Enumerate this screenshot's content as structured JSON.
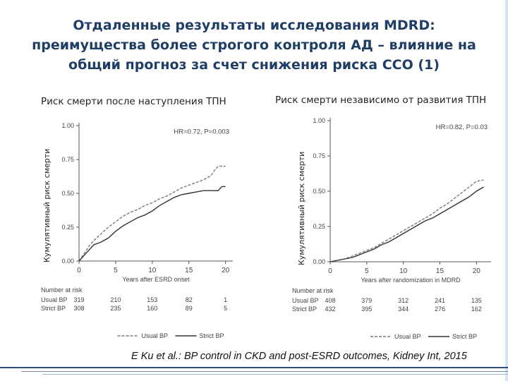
{
  "slide": {
    "title_lines": [
      "Отдаленные результаты исследования MDRD:",
      "преимущества более строгого контроля АД – влияние на",
      "общий прогноз за счет снижения риска ССО (1)"
    ],
    "citation": "E Ku et al.: BP control in CKD and post-ESRD outcomes, Kidney Int, 2015",
    "accent_color": "#1f3e66"
  },
  "chart_data": [
    {
      "type": "line",
      "title": "Риск смерти после наступления ТПН",
      "ylabel": "Кумулятивный риск смерти",
      "xlabel": "Years after ESRD onset",
      "annotation": "HR=0.72, P=0.003",
      "xlim": [
        0,
        21
      ],
      "ylim": [
        0,
        1
      ],
      "xticks": [
        "0",
        "5",
        "10",
        "15",
        "20"
      ],
      "yticks": [
        "0.00",
        "0.25",
        "0.50",
        "0.75",
        "1.00"
      ],
      "series": [
        {
          "name": "Usual BP",
          "style": "dashed",
          "x": [
            0,
            0.5,
            1,
            1.5,
            2,
            3,
            4,
            5,
            6,
            7,
            8,
            9,
            10,
            11,
            12,
            13,
            14,
            15,
            16,
            17,
            18,
            18.5,
            19,
            20
          ],
          "values": [
            0,
            0.04,
            0.08,
            0.12,
            0.15,
            0.2,
            0.25,
            0.29,
            0.33,
            0.36,
            0.38,
            0.41,
            0.43,
            0.46,
            0.48,
            0.51,
            0.54,
            0.56,
            0.58,
            0.6,
            0.63,
            0.67,
            0.7,
            0.7
          ]
        },
        {
          "name": "Strict BP",
          "style": "solid",
          "x": [
            0,
            0.5,
            1,
            1.5,
            2,
            3,
            4,
            5,
            6,
            7,
            8,
            9,
            10,
            11,
            12,
            13,
            14,
            15,
            16,
            17,
            18,
            19,
            19.5,
            20
          ],
          "values": [
            0,
            0.03,
            0.06,
            0.09,
            0.12,
            0.14,
            0.17,
            0.22,
            0.26,
            0.29,
            0.32,
            0.34,
            0.37,
            0.41,
            0.44,
            0.47,
            0.49,
            0.5,
            0.51,
            0.52,
            0.52,
            0.52,
            0.55,
            0.55
          ]
        }
      ],
      "risk_table": {
        "header": "Number at risk",
        "rows": [
          {
            "label": "Usual BP",
            "values": [
              "319",
              "210",
              "153",
              "82",
              "1"
            ]
          },
          {
            "label": "Strict BP",
            "values": [
              "308",
              "235",
              "160",
              "89",
              "5"
            ]
          }
        ]
      },
      "legend": {
        "position": "bottom",
        "entries": [
          "Usual BP",
          "Strict BP"
        ]
      }
    },
    {
      "type": "line",
      "title": "Риск смерти независимо от развития ТПН",
      "ylabel": "Кумулятивный риск смерти",
      "xlabel": "Years after randomization in MDRD",
      "annotation": "HR=0.82, P=0.03",
      "xlim": [
        0,
        22
      ],
      "ylim": [
        0,
        1
      ],
      "xticks": [
        "0",
        "5",
        "10",
        "15",
        "20"
      ],
      "yticks": [
        "0.00",
        "0.25",
        "0.50",
        "0.75",
        "1.00"
      ],
      "series": [
        {
          "name": "Usual BP",
          "style": "dashed",
          "x": [
            0,
            1,
            2,
            3,
            4,
            5,
            6,
            7,
            8,
            9,
            10,
            11,
            12,
            13,
            14,
            15,
            16,
            17,
            18,
            19,
            20,
            21
          ],
          "values": [
            0,
            0.01,
            0.02,
            0.04,
            0.06,
            0.08,
            0.1,
            0.13,
            0.16,
            0.19,
            0.22,
            0.25,
            0.28,
            0.31,
            0.34,
            0.38,
            0.41,
            0.45,
            0.49,
            0.53,
            0.57,
            0.58
          ]
        },
        {
          "name": "Strict BP",
          "style": "solid",
          "x": [
            0,
            1,
            2,
            3,
            4,
            5,
            6,
            7,
            8,
            9,
            10,
            11,
            12,
            13,
            14,
            15,
            16,
            17,
            18,
            19,
            20,
            21
          ],
          "values": [
            0,
            0.01,
            0.02,
            0.03,
            0.05,
            0.07,
            0.09,
            0.12,
            0.14,
            0.17,
            0.2,
            0.23,
            0.26,
            0.29,
            0.31,
            0.34,
            0.37,
            0.4,
            0.43,
            0.46,
            0.5,
            0.53
          ]
        }
      ],
      "risk_table": {
        "header": "Number at risk",
        "rows": [
          {
            "label": "Usual BP",
            "values": [
              "408",
              "379",
              "312",
              "241",
              "135"
            ]
          },
          {
            "label": "Strict BP",
            "values": [
              "432",
              "395",
              "344",
              "276",
              "162"
            ]
          }
        ]
      },
      "legend": {
        "position": "bottom",
        "entries": [
          "Usual BP",
          "Strict BP"
        ]
      }
    }
  ]
}
